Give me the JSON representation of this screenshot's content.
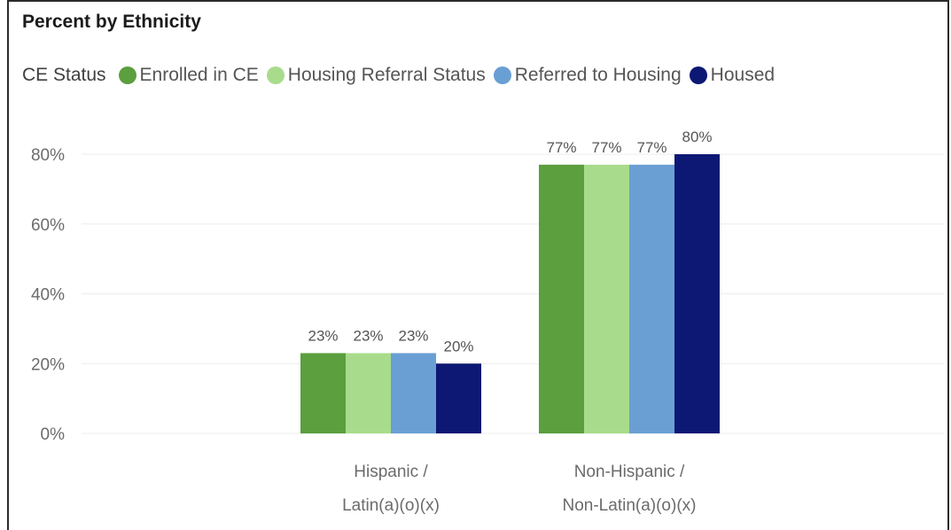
{
  "chart_data": {
    "type": "bar",
    "title": "Percent by Ethnicity",
    "legend_title": "CE Status",
    "legend_position": "top-left",
    "grid": true,
    "ylim": [
      0,
      0.8
    ],
    "yticks": [
      "0%",
      "20%",
      "40%",
      "60%",
      "80%"
    ],
    "categories": [
      [
        "Hispanic /",
        "Latin(a)(o)(x)"
      ],
      [
        "Non-Hispanic /",
        "Non-Latin(a)(o)(x)"
      ]
    ],
    "series": [
      {
        "name": "Enrolled in CE",
        "color": "#5b9f3e",
        "values": [
          0.23,
          0.77
        ],
        "labels": [
          "23%",
          "77%"
        ]
      },
      {
        "name": "Housing Referral Status",
        "color": "#a8dc8c",
        "values": [
          0.23,
          0.77
        ],
        "labels": [
          "23%",
          "77%"
        ]
      },
      {
        "name": "Referred to Housing",
        "color": "#6a9fd4",
        "values": [
          0.23,
          0.77
        ],
        "labels": [
          "23%",
          "77%"
        ]
      },
      {
        "name": "Housed",
        "color": "#0c1873",
        "values": [
          0.2,
          0.8
        ],
        "labels": [
          "20%",
          "80%"
        ]
      }
    ]
  }
}
